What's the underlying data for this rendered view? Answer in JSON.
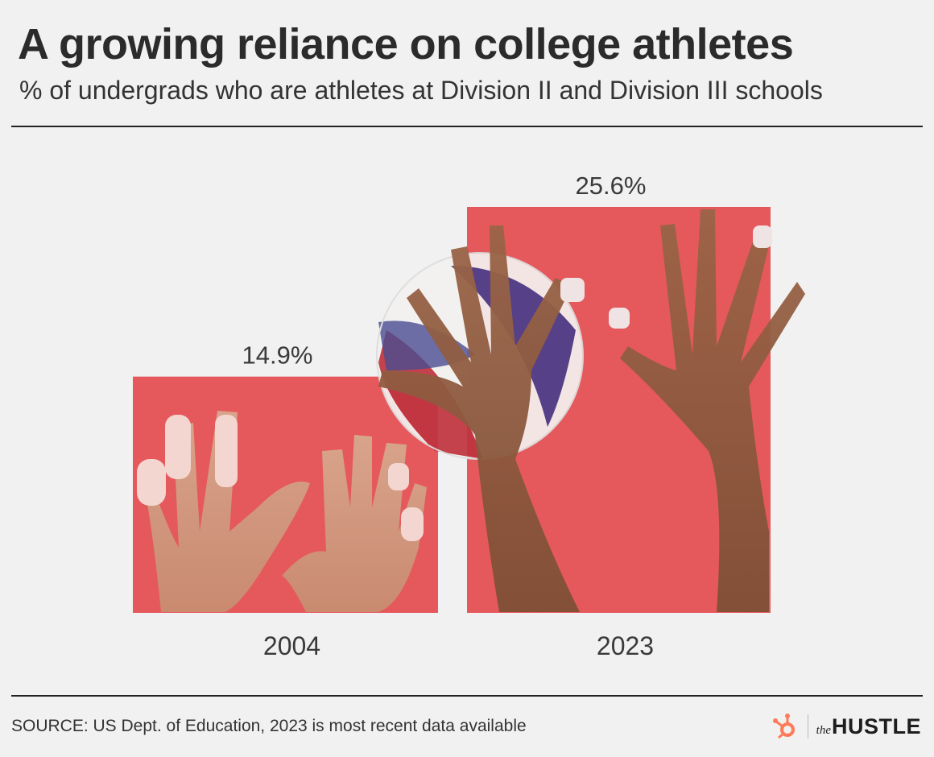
{
  "header": {
    "title": "A growing reliance on college athletes",
    "subtitle": "% of undergrads who are athletes at Division II and Division III schools"
  },
  "chart_data": {
    "type": "bar",
    "title": "A growing reliance on college athletes",
    "subtitle": "% of undergrads who are athletes at Division II and Division III schools",
    "categories": [
      "2004",
      "2023"
    ],
    "values": [
      14.9,
      25.6
    ],
    "value_labels": [
      "14.9%",
      "25.6%"
    ],
    "xlabel": "",
    "ylabel": "",
    "ylim": [
      0,
      25.6
    ],
    "grid": false,
    "legend": "none",
    "bar_color": "#e5585c"
  },
  "footer": {
    "source": "SOURCE: US Dept. of Education, 2023 is most recent data available",
    "brand_the": "the",
    "brand_name": "HUSTLE",
    "brand_color": "#ff7a59"
  }
}
